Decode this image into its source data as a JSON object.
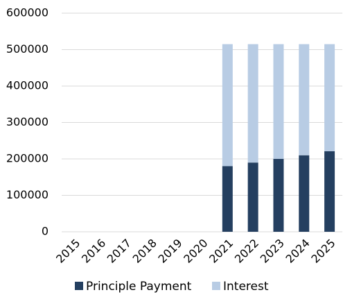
{
  "chart_data": {
    "type": "stacked_bar",
    "categories": [
      "2015",
      "2016",
      "2017",
      "2018",
      "2019",
      "2020",
      "2021",
      "2022",
      "2023",
      "2024",
      "2025"
    ],
    "series": [
      {
        "name": "Principle Payment",
        "color": "#243f60",
        "values": [
          0,
          0,
          0,
          0,
          0,
          0,
          180000,
          190000,
          200000,
          210000,
          221000
        ]
      },
      {
        "name": "Interest",
        "color": "#b8cce4",
        "values": [
          0,
          0,
          0,
          0,
          0,
          0,
          335000,
          325000,
          315000,
          305000,
          294000
        ]
      }
    ],
    "ylim": [
      0,
      600000
    ],
    "yticks": [
      0,
      100000,
      200000,
      300000,
      400000,
      500000,
      600000
    ],
    "grid": true,
    "legend": "bottom"
  }
}
